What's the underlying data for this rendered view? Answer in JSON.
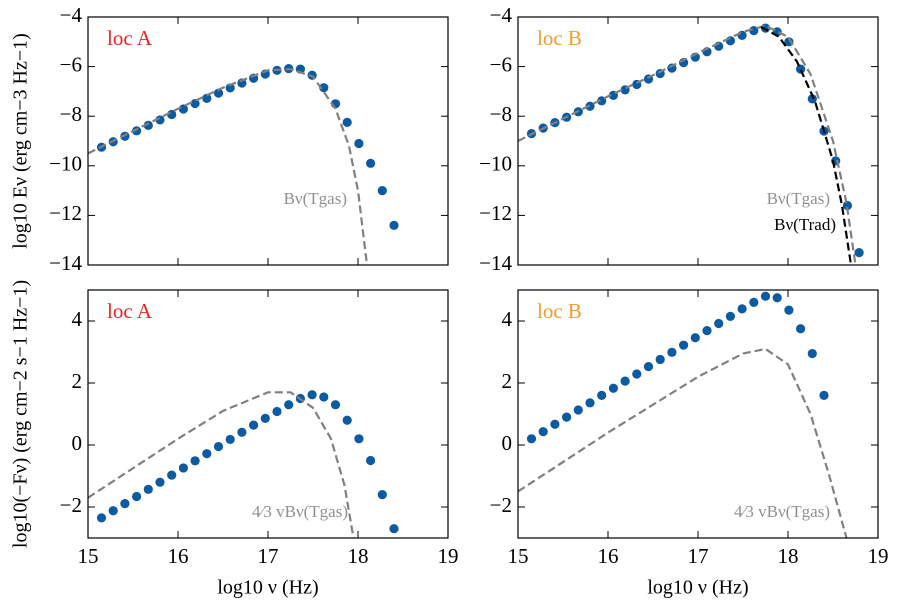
{
  "chart_data": [
    {
      "type": "line",
      "ylabel": "log10 Eν (erg cm−3 Hz−1)",
      "xlim": [
        15,
        19
      ],
      "xticks": [
        15,
        16,
        17,
        18,
        19
      ],
      "ylim": [
        -14,
        -4
      ],
      "yticks": [
        {
          "value": -14,
          "label": "−14"
        },
        {
          "value": -12,
          "label": "−12"
        },
        {
          "value": -10,
          "label": "−10"
        },
        {
          "value": -8,
          "label": "−8"
        },
        {
          "value": -6,
          "label": "−6"
        },
        {
          "value": -4,
          "label": "−4"
        }
      ],
      "annotations": [
        {
          "text": "loc A",
          "color": "#e8251f"
        },
        {
          "text": "Bν(Tgas)",
          "color": "#909090"
        }
      ],
      "series": [
        {
          "color": "#0b5aa2",
          "marker": "o",
          "x": [
            15.15,
            15.28,
            15.41,
            15.54,
            15.67,
            15.8,
            15.93,
            16.06,
            16.19,
            16.32,
            16.45,
            16.58,
            16.71,
            16.84,
            16.97,
            17.1,
            17.23,
            17.36,
            17.49,
            17.62,
            17.75,
            17.88,
            18.01,
            18.14,
            18.27,
            18.4
          ],
          "values": [
            -9.25,
            -9.03,
            -8.81,
            -8.59,
            -8.37,
            -8.15,
            -7.93,
            -7.71,
            -7.49,
            -7.28,
            -7.07,
            -6.86,
            -6.66,
            -6.47,
            -6.3,
            -6.15,
            -6.08,
            -6.1,
            -6.35,
            -6.85,
            -7.5,
            -8.25,
            -9.1,
            -9.9,
            -11.0,
            -12.4
          ]
        },
        {
          "color": "#808080",
          "linestyle": "dashed",
          "x": [
            15,
            15.5,
            16,
            16.5,
            17,
            17.25,
            17.5,
            17.75,
            17.9,
            18,
            18.1
          ],
          "values": [
            -9.5,
            -8.6,
            -7.7,
            -6.85,
            -6.15,
            -6.1,
            -6.4,
            -7.7,
            -9.2,
            -11.0,
            -14.0
          ]
        }
      ]
    },
    {
      "type": "line",
      "xlim": [
        15,
        19
      ],
      "xticks": [
        15,
        16,
        17,
        18,
        19
      ],
      "ylim": [
        -14,
        -4
      ],
      "yticks": [
        {
          "value": -14,
          "label": "−14"
        },
        {
          "value": -12,
          "label": "−12"
        },
        {
          "value": -10,
          "label": "−10"
        },
        {
          "value": -8,
          "label": "−8"
        },
        {
          "value": -6,
          "label": "−6"
        },
        {
          "value": -4,
          "label": "−4"
        }
      ],
      "annotations": [
        {
          "text": "loc B",
          "color": "#f39c2c"
        },
        {
          "text": "Bν(Tgas)",
          "color": "#909090"
        },
        {
          "text": "Bν(Trad)",
          "color": "#000000"
        }
      ],
      "series": [
        {
          "color": "#0b5aa2",
          "marker": "o",
          "x": [
            15.15,
            15.28,
            15.41,
            15.54,
            15.67,
            15.8,
            15.93,
            16.06,
            16.19,
            16.32,
            16.45,
            16.58,
            16.71,
            16.84,
            16.97,
            17.1,
            17.23,
            17.36,
            17.49,
            17.62,
            17.75,
            17.88,
            18.01,
            18.14,
            18.27,
            18.4,
            18.53,
            18.66,
            18.79
          ],
          "values": [
            -8.7,
            -8.48,
            -8.26,
            -8.04,
            -7.82,
            -7.6,
            -7.38,
            -7.16,
            -6.94,
            -6.72,
            -6.5,
            -6.28,
            -6.06,
            -5.84,
            -5.62,
            -5.4,
            -5.18,
            -4.96,
            -4.74,
            -4.55,
            -4.45,
            -4.6,
            -5.0,
            -6.1,
            -7.3,
            -8.6,
            -9.8,
            -11.6,
            -13.5
          ]
        },
        {
          "color": "#808080",
          "linestyle": "dashed",
          "x": [
            15,
            15.5,
            16,
            16.5,
            17,
            17.5,
            17.75,
            18,
            18.25,
            18.5,
            18.65,
            18.75
          ],
          "values": [
            -9.0,
            -8.1,
            -7.2,
            -6.35,
            -5.45,
            -4.6,
            -4.35,
            -4.8,
            -6.3,
            -9.0,
            -11.5,
            -14.0
          ]
        },
        {
          "color": "#000000",
          "linestyle": "dashed",
          "x": [
            17.7,
            17.9,
            18.1,
            18.3,
            18.5,
            18.6,
            18.7
          ],
          "values": [
            -4.4,
            -4.8,
            -5.8,
            -7.4,
            -9.8,
            -11.6,
            -14.0
          ]
        }
      ]
    },
    {
      "type": "line",
      "xlabel": "log10 ν (Hz)",
      "ylabel": "log10(−Fν) (erg cm−2 s−1 Hz−1)",
      "xlim": [
        15,
        19
      ],
      "xticks": [
        15,
        16,
        17,
        18,
        19
      ],
      "ylim": [
        -3,
        5
      ],
      "yticks": [
        {
          "value": -2,
          "label": "−2"
        },
        0,
        2,
        4
      ],
      "annotations": [
        {
          "text": "loc A",
          "color": "#e8251f"
        },
        {
          "text": "4⁄3 vBν(Tgas)",
          "color": "#909090"
        }
      ],
      "series": [
        {
          "color": "#0b5aa2",
          "marker": "o",
          "x": [
            15.15,
            15.28,
            15.41,
            15.54,
            15.67,
            15.8,
            15.93,
            16.06,
            16.19,
            16.32,
            16.45,
            16.58,
            16.71,
            16.84,
            16.97,
            17.1,
            17.23,
            17.36,
            17.49,
            17.62,
            17.75,
            17.88,
            18.01,
            18.14,
            18.27,
            18.4
          ],
          "values": [
            -2.35,
            -2.12,
            -1.89,
            -1.66,
            -1.43,
            -1.2,
            -0.97,
            -0.74,
            -0.51,
            -0.28,
            -0.05,
            0.18,
            0.41,
            0.64,
            0.86,
            1.08,
            1.3,
            1.5,
            1.62,
            1.55,
            1.3,
            0.8,
            0.2,
            -0.5,
            -1.6,
            -2.7
          ]
        },
        {
          "color": "#808080",
          "linestyle": "dashed",
          "x": [
            15,
            15.5,
            16,
            16.5,
            17,
            17.25,
            17.5,
            17.7,
            17.85,
            17.95
          ],
          "values": [
            -1.7,
            -0.75,
            0.2,
            1.1,
            1.7,
            1.7,
            1.2,
            0.2,
            -1.3,
            -3.0
          ]
        }
      ]
    },
    {
      "type": "line",
      "xlabel": "log10 ν (Hz)",
      "xlim": [
        15,
        19
      ],
      "xticks": [
        15,
        16,
        17,
        18,
        19
      ],
      "ylim": [
        -3,
        5
      ],
      "yticks": [
        {
          "value": -2,
          "label": "−2"
        },
        0,
        2,
        4
      ],
      "annotations": [
        {
          "text": "loc B",
          "color": "#f39c2c"
        },
        {
          "text": "4⁄3 vBν(Tgas)",
          "color": "#909090"
        }
      ],
      "series": [
        {
          "color": "#0b5aa2",
          "marker": "o",
          "x": [
            15.15,
            15.28,
            15.41,
            15.54,
            15.67,
            15.8,
            15.93,
            16.06,
            16.19,
            16.32,
            16.45,
            16.58,
            16.71,
            16.84,
            16.97,
            17.1,
            17.23,
            17.36,
            17.49,
            17.62,
            17.75,
            17.88,
            18.01,
            18.14,
            18.27,
            18.4
          ],
          "values": [
            0.2,
            0.43,
            0.67,
            0.9,
            1.13,
            1.36,
            1.6,
            1.83,
            2.06,
            2.29,
            2.53,
            2.76,
            2.99,
            3.22,
            3.46,
            3.69,
            3.92,
            4.15,
            4.39,
            4.6,
            4.8,
            4.75,
            4.35,
            3.75,
            2.95,
            1.6
          ]
        },
        {
          "color": "#808080",
          "linestyle": "dashed",
          "x": [
            15,
            15.5,
            16,
            16.5,
            17,
            17.5,
            17.75,
            18,
            18.25,
            18.45,
            18.65
          ],
          "values": [
            -1.5,
            -0.55,
            0.4,
            1.3,
            2.2,
            2.95,
            3.1,
            2.6,
            1.0,
            -0.9,
            -3.0
          ]
        }
      ]
    }
  ]
}
